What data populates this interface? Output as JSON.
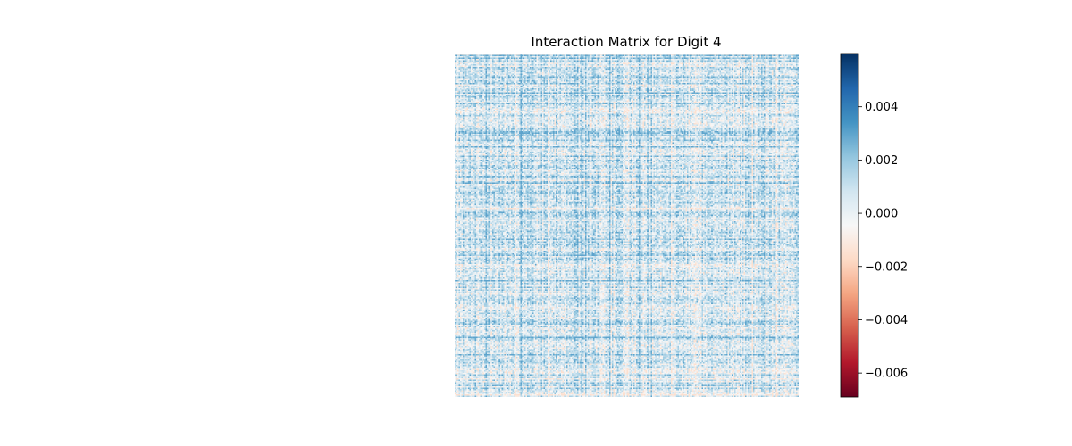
{
  "chart_data": {
    "type": "heatmap",
    "title": "Interaction Matrix for Digit 4",
    "xlabel": "",
    "ylabel": "",
    "axes_visible": false,
    "matrix_rows": 784,
    "matrix_cols": 784,
    "value_range": [
      -0.0069,
      0.006
    ],
    "typical_range": [
      -0.0015,
      0.003
    ],
    "colormap": "RdBu",
    "colormap_stops": [
      "#67001f",
      "#b2182b",
      "#d6604d",
      "#f4a582",
      "#fddbc7",
      "#f7f7f7",
      "#d1e5f0",
      "#92c5de",
      "#4393c3",
      "#2166ac",
      "#053061"
    ],
    "colorbar": {
      "location": "right",
      "min": -0.0069,
      "max": 0.006,
      "ticks": [
        {
          "value": 0.004,
          "label": "0.004"
        },
        {
          "value": 0.002,
          "label": "0.002"
        },
        {
          "value": 0.0,
          "label": "0.000"
        },
        {
          "value": -0.002,
          "label": "−0.002"
        },
        {
          "value": -0.004,
          "label": "−0.004"
        },
        {
          "value": -0.006,
          "label": "−0.006"
        }
      ]
    }
  }
}
